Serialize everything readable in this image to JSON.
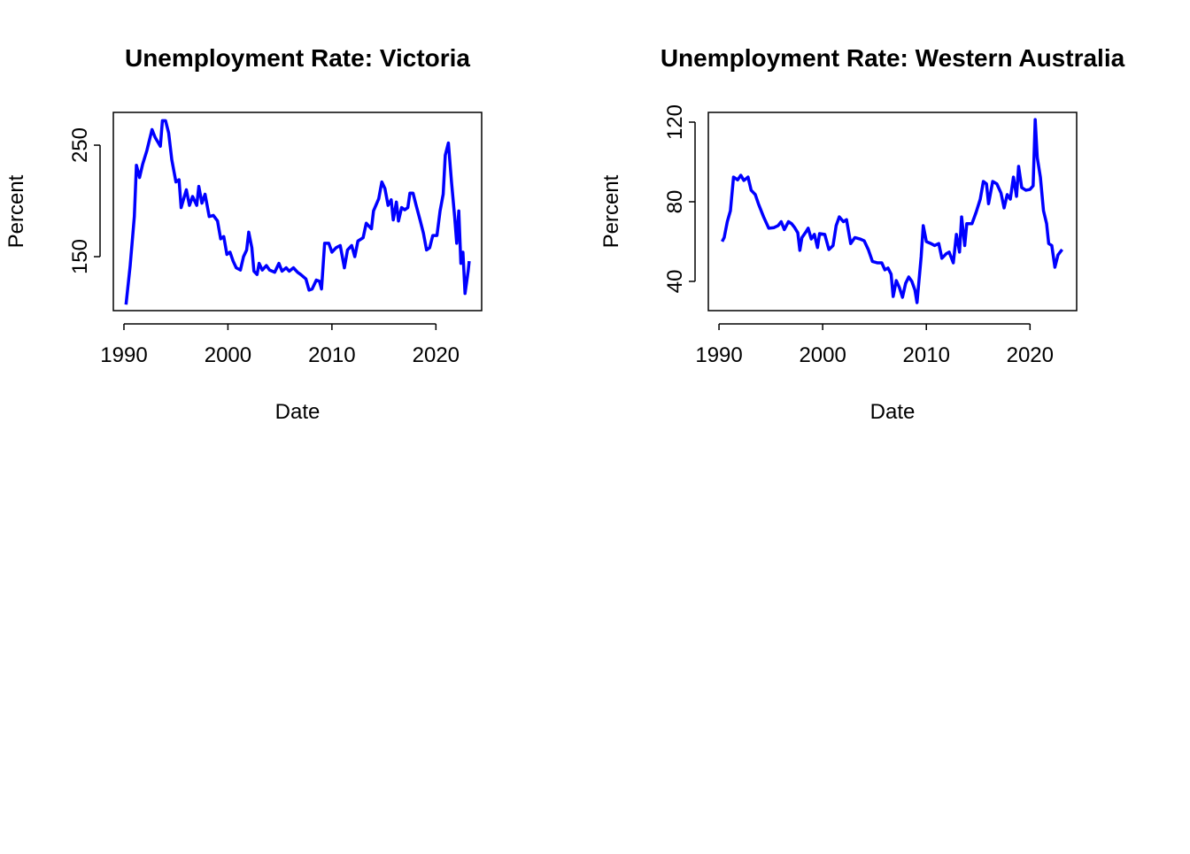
{
  "chart_data": [
    {
      "type": "line",
      "title": "Unemployment Rate: Victoria",
      "xlabel": "Date",
      "ylabel": "Percent",
      "color": "#0000ff",
      "xlim": [
        1988.98,
        2024.4
      ],
      "ylim": [
        101.6,
        279.4
      ],
      "xticks": [
        1990,
        2000,
        2010,
        2020
      ],
      "yticks": [
        150,
        250
      ],
      "x": [
        1990.2,
        1990.6,
        1991.0,
        1991.2,
        1991.5,
        1991.8,
        1992.2,
        1992.7,
        1993.0,
        1993.5,
        1993.7,
        1994.0,
        1994.3,
        1994.6,
        1995.0,
        1995.3,
        1995.5,
        1996.0,
        1996.3,
        1996.6,
        1997.0,
        1997.2,
        1997.5,
        1997.8,
        1998.2,
        1998.6,
        1999.0,
        1999.3,
        1999.6,
        1999.9,
        2000.2,
        2000.5,
        2000.8,
        2001.2,
        2001.5,
        2001.8,
        2002.0,
        2002.3,
        2002.5,
        2002.8,
        2003.0,
        2003.3,
        2003.7,
        2004.0,
        2004.5,
        2004.9,
        2005.2,
        2005.6,
        2005.9,
        2006.3,
        2006.7,
        2007.0,
        2007.5,
        2007.8,
        2008.1,
        2008.5,
        2008.8,
        2009.0,
        2009.3,
        2009.7,
        2010.0,
        2010.4,
        2010.8,
        2011.2,
        2011.5,
        2011.9,
        2012.2,
        2012.5,
        2013.0,
        2013.3,
        2013.8,
        2014.0,
        2014.5,
        2014.8,
        2015.1,
        2015.4,
        2015.7,
        2015.9,
        2016.2,
        2016.4,
        2016.7,
        2017.0,
        2017.3,
        2017.5,
        2017.8,
        2018.1,
        2018.5,
        2018.8,
        2019.1,
        2019.4,
        2019.7,
        2020.1,
        2020.4,
        2020.7,
        2020.9,
        2021.2,
        2021.5,
        2021.8,
        2022.0,
        2022.2,
        2022.4,
        2022.6,
        2022.8,
        2023.1,
        2023.2
      ],
      "values": [
        107,
        142,
        186,
        232,
        221,
        233,
        245,
        264,
        257,
        249,
        272,
        272,
        261,
        237,
        217,
        219,
        194,
        210,
        196,
        204,
        196,
        213,
        198,
        206,
        186,
        187,
        182,
        166,
        168,
        152,
        154,
        146,
        140,
        138,
        150,
        156,
        172,
        158,
        137,
        134,
        144,
        138,
        142,
        138,
        136,
        144,
        137,
        140,
        137,
        140,
        136,
        134,
        130,
        120,
        121,
        129,
        128,
        121,
        162,
        162,
        154,
        158,
        160,
        140,
        156,
        160,
        150,
        164,
        167,
        180,
        175,
        191,
        202,
        217,
        211,
        196,
        201,
        183,
        199,
        182,
        194,
        192,
        194,
        207,
        207,
        196,
        182,
        171,
        156,
        158,
        169,
        169,
        191,
        206,
        241,
        252,
        217,
        186,
        162,
        191,
        144,
        154,
        117,
        137,
        146
      ]
    },
    {
      "type": "line",
      "title": "Unemployment Rate: Western Australia",
      "xlabel": "Date",
      "ylabel": "Percent",
      "color": "#0000ff",
      "xlim": [
        1988.97,
        2024.5
      ],
      "ylim": [
        25.3,
        124.9
      ],
      "xticks": [
        1990,
        2000,
        2010,
        2020
      ],
      "yticks": [
        40,
        80,
        120
      ],
      "x": [
        1990.3,
        1990.5,
        1990.8,
        1991.1,
        1991.4,
        1991.8,
        1992.1,
        1992.4,
        1992.8,
        1993.1,
        1993.5,
        1993.8,
        1994.3,
        1994.8,
        1995.3,
        1995.7,
        1996.0,
        1996.3,
        1996.7,
        1997.0,
        1997.3,
        1997.6,
        1997.8,
        1998.0,
        1998.4,
        1998.6,
        1998.9,
        1999.2,
        1999.5,
        1999.7,
        2000.2,
        2000.6,
        2001.0,
        2001.3,
        2001.6,
        2002.0,
        2002.3,
        2002.7,
        2003.1,
        2003.6,
        2004.0,
        2004.4,
        2004.8,
        2005.3,
        2005.7,
        2006.0,
        2006.3,
        2006.6,
        2006.8,
        2007.1,
        2007.4,
        2007.7,
        2008.0,
        2008.3,
        2008.6,
        2008.9,
        2009.1,
        2009.5,
        2009.7,
        2010.0,
        2010.4,
        2010.8,
        2011.2,
        2011.5,
        2011.9,
        2012.2,
        2012.6,
        2012.9,
        2013.2,
        2013.4,
        2013.7,
        2013.9,
        2014.4,
        2014.8,
        2015.2,
        2015.5,
        2015.8,
        2016.0,
        2016.4,
        2016.8,
        2017.2,
        2017.5,
        2017.8,
        2018.1,
        2018.4,
        2018.7,
        2018.9,
        2019.2,
        2019.6,
        2020.0,
        2020.3,
        2020.5,
        2020.7,
        2021.0,
        2021.3,
        2021.6,
        2021.8,
        2022.1,
        2022.4,
        2022.7,
        2023.1
      ],
      "values": [
        60,
        62,
        70,
        75.5,
        92.4,
        91,
        93.3,
        90.7,
        92.4,
        85.8,
        83.6,
        79,
        72.4,
        66.7,
        67,
        68,
        70,
        66,
        70,
        69,
        67,
        64.4,
        55.6,
        62,
        65,
        66.7,
        61.3,
        63.6,
        57,
        64,
        63.6,
        56,
        58,
        68,
        72.4,
        70,
        71,
        59,
        62,
        61.3,
        60.4,
        56,
        50,
        49.3,
        49.3,
        45.8,
        46.7,
        43.6,
        32.4,
        40.4,
        36.9,
        32,
        39,
        42.2,
        40,
        35.6,
        29.3,
        52.4,
        68,
        60,
        59.1,
        58,
        59,
        51.6,
        53.8,
        54.7,
        49.3,
        63.6,
        54.7,
        72.4,
        58,
        69,
        69,
        74.7,
        81.3,
        90.2,
        89,
        79,
        90.2,
        89,
        84.4,
        76.9,
        83.6,
        81.3,
        92.4,
        82.7,
        97.8,
        87.1,
        85.8,
        86.2,
        88,
        121.3,
        102.2,
        92.4,
        75.5,
        69,
        59,
        58,
        47.1,
        53.3,
        56
      ]
    }
  ]
}
